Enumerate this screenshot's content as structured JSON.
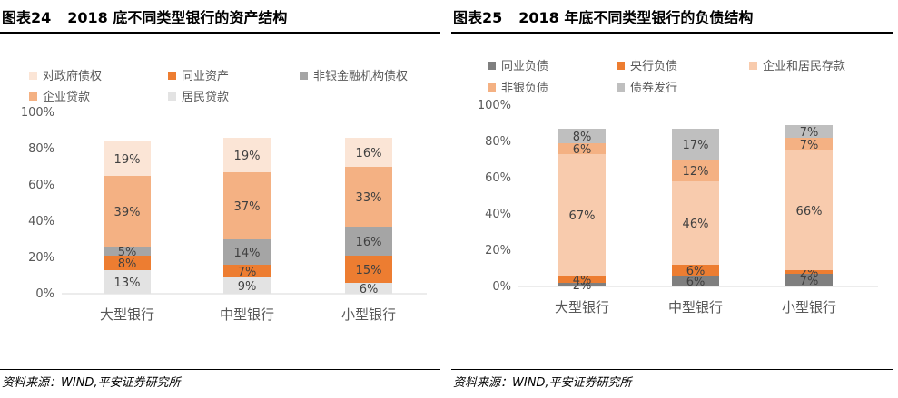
{
  "left": {
    "figure_number": "图表24",
    "source": "资料来源：WIND,平安证券研究所"
  },
  "right": {
    "figure_number": "图表25",
    "source": "资料来源：WIND,平安证券研究所"
  },
  "chart_data": [
    {
      "type": "bar",
      "stacked": true,
      "title": "2018 底不同类型银行的资产结构",
      "categories": [
        "大型银行",
        "中型银行",
        "小型银行"
      ],
      "ylim": [
        0,
        100
      ],
      "yticks": [
        "0%",
        "20%",
        "40%",
        "60%",
        "80%",
        "100%"
      ],
      "legend": [
        "对政府债权",
        "同业资产",
        "非银金融机构债权",
        "企业贷款",
        "居民贷款"
      ],
      "series": [
        {
          "name": "居民贷款",
          "color": "#e3e3e3",
          "values": [
            13,
            9,
            6
          ],
          "labels": [
            "13%",
            "9%",
            "6%"
          ]
        },
        {
          "name": "同业资产",
          "color": "#ed7d31",
          "values": [
            8,
            7,
            15
          ],
          "labels": [
            "8%",
            "7%",
            "15%"
          ]
        },
        {
          "name": "非银金融机构债权",
          "color": "#a5a5a5",
          "values": [
            5,
            14,
            16
          ],
          "labels": [
            "5%",
            "14%",
            "16%"
          ]
        },
        {
          "name": "企业贷款",
          "color": "#f4b183",
          "values": [
            39,
            37,
            33
          ],
          "labels": [
            "39%",
            "37%",
            "33%"
          ]
        },
        {
          "name": "对政府债权",
          "color": "#fbe5d6",
          "values": [
            19,
            19,
            16
          ],
          "labels": [
            "19%",
            "19%",
            "16%"
          ]
        }
      ]
    },
    {
      "type": "bar",
      "stacked": true,
      "title": "2018 年底不同类型银行的负债结构",
      "categories": [
        "大型银行",
        "中型银行",
        "小型银行"
      ],
      "ylim": [
        0,
        100
      ],
      "yticks": [
        "0%",
        "20%",
        "40%",
        "60%",
        "80%",
        "100%"
      ],
      "legend": [
        "同业负债",
        "央行负债",
        "企业和居民存款",
        "非银负债",
        "债券发行"
      ],
      "series": [
        {
          "name": "同业负债",
          "color": "#7f7f7f",
          "values": [
            2,
            6,
            7
          ],
          "labels": [
            "2%",
            "6%",
            "7%"
          ]
        },
        {
          "name": "央行负债",
          "color": "#ed7d31",
          "values": [
            4,
            6,
            2
          ],
          "labels": [
            "4%",
            "6%",
            "2%"
          ]
        },
        {
          "name": "企业和居民存款",
          "color": "#f8cbad",
          "values": [
            67,
            46,
            66
          ],
          "labels": [
            "67%",
            "46%",
            "66%"
          ]
        },
        {
          "name": "非银负债",
          "color": "#f4b183",
          "values": [
            6,
            12,
            7
          ],
          "labels": [
            "6%",
            "12%",
            "7%"
          ]
        },
        {
          "name": "债券发行",
          "color": "#bfbfbf",
          "values": [
            8,
            17,
            7
          ],
          "labels": [
            "8%",
            "17%",
            "7%"
          ]
        }
      ]
    }
  ]
}
